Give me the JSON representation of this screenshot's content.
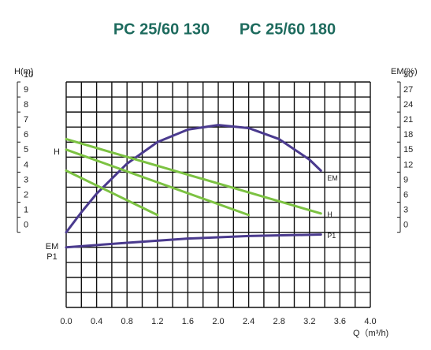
{
  "chart_data": {
    "type": "line",
    "title": [
      "PC 25/60 130",
      "PC 25/60 180"
    ],
    "y_label": "H(m)",
    "y2_label": "EM(%)",
    "x_label": "Q（m³/h)",
    "xlim": [
      0,
      4
    ],
    "xticks": [
      {
        "value": 0,
        "label": "0.0"
      },
      0.4,
      0.8,
      1.2,
      1.6,
      {
        "value": 2,
        "label": "2.0"
      },
      2.4,
      2.8,
      3.2,
      3.6,
      {
        "value": 4,
        "label": "4.0"
      }
    ],
    "ylim": [
      -5,
      10
    ],
    "yticks": [
      0,
      1,
      2,
      3,
      4,
      5,
      6,
      7,
      8,
      9,
      10
    ],
    "y2lim": [
      -15,
      30
    ],
    "y2ticks": [
      0,
      3,
      6,
      9,
      12,
      15,
      18,
      21,
      24,
      27,
      30
    ],
    "grid": true,
    "left_labels": [
      "H",
      "EM",
      "P1"
    ],
    "series": [
      {
        "name": "EM",
        "color": "#4a3a8e",
        "axis": "y2",
        "x": [
          0,
          0.2,
          0.4,
          0.8,
          1.2,
          1.6,
          2.0,
          2.4,
          2.8,
          3.2,
          3.35
        ],
        "values": [
          0,
          4,
          7.7,
          13.7,
          18,
          20.5,
          21.4,
          20.8,
          18.6,
          14.5,
          12.3
        ]
      },
      {
        "name": "H",
        "color": "#7cc242",
        "lines": [
          {
            "x": [
              0,
              3.35
            ],
            "values": [
              6.2,
              1.25
            ]
          },
          {
            "x": [
              0,
              2.4
            ],
            "values": [
              5.5,
              1.15
            ]
          },
          {
            "x": [
              0,
              1.2
            ],
            "values": [
              4.1,
              1.15
            ]
          }
        ]
      },
      {
        "name": "P1",
        "color": "#4a3a8e",
        "x": [
          0,
          0.8,
          1.6,
          2.4,
          3.35
        ],
        "values": [
          -1.0,
          -0.7,
          -0.42,
          -0.25,
          -0.15
        ]
      }
    ]
  }
}
